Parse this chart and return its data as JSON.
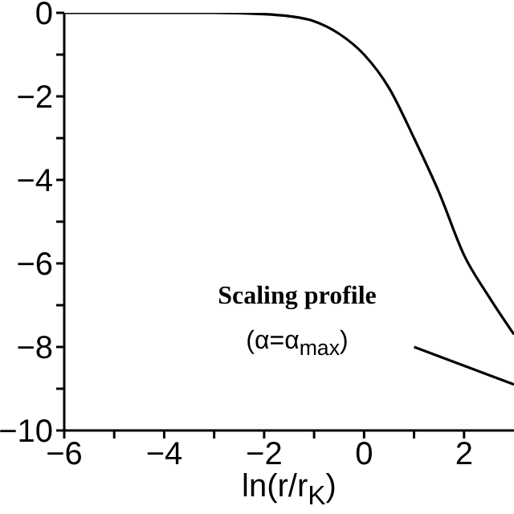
{
  "chart_data": {
    "type": "line",
    "xlabel": "ln(r/r$_{K}$)",
    "annotations": [
      "Scaling profile",
      "(α=α$_{max}$)"
    ],
    "xlim": [
      -6,
      3
    ],
    "xticks": [
      -6,
      {
        "value": -5,
        "label": null
      },
      -4,
      {
        "value": -3,
        "label": null
      },
      -2,
      {
        "value": -1,
        "label": null
      },
      0,
      {
        "value": 1,
        "label": null
      },
      2
    ],
    "ylim": [
      -10,
      0
    ],
    "yticks": [
      -10,
      {
        "value": -9,
        "label": null
      },
      -8,
      {
        "value": -7,
        "label": null
      },
      -6,
      {
        "value": -5,
        "label": null
      },
      -4,
      {
        "value": -3,
        "label": null
      },
      -2,
      {
        "value": -1,
        "label": null
      },
      0
    ],
    "grid": false,
    "legend": false,
    "marker": "none",
    "line_style": "solid",
    "series": [
      {
        "color": "#000000",
        "x": [
          -6,
          -3,
          -2,
          -1.5,
          -1,
          -0.5,
          0,
          0.5,
          1,
          1.5,
          2,
          2.5,
          3
        ],
        "values": [
          0,
          0,
          -0.03,
          -0.08,
          -0.2,
          -0.5,
          -1.0,
          -1.8,
          -3.0,
          -4.3,
          -5.8,
          -6.8,
          -7.7
        ]
      },
      {
        "color": "#000000",
        "x": [
          1,
          3
        ],
        "values": [
          -8.0,
          -8.9
        ]
      }
    ]
  }
}
